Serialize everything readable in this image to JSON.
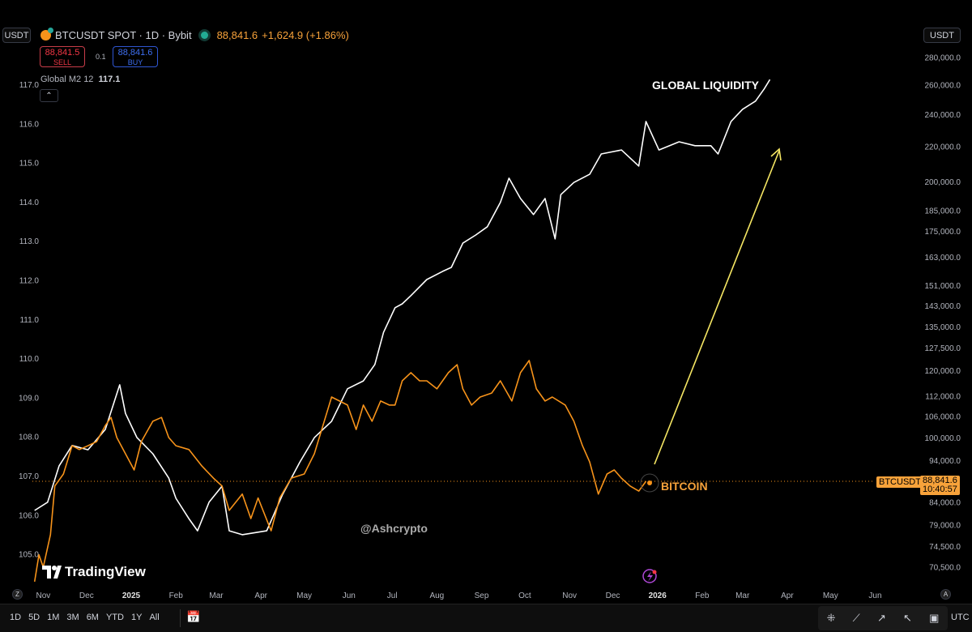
{
  "header": {
    "currency_left": "USDT",
    "currency_right": "USDT",
    "symbol": "BTCUSDT SPOT · 1D · Bybit",
    "price": "88,841.6",
    "change": "+1,624.9 (+1.86%)",
    "sell_price": "88,841.5",
    "sell_label": "SELL",
    "qty": "0.1",
    "buy_price": "88,841.6",
    "buy_label": "BUY",
    "indicator_name": "Global M2 12",
    "indicator_value": "117.1",
    "collapse_icon": "chevron-up-icon"
  },
  "price_tag": {
    "symbol": "BTCUSDT",
    "price": "88,841.6",
    "countdown": "10:40:57"
  },
  "annotations": {
    "liquidity": "GLOBAL LIQUIDITY",
    "bitcoin": "BITCOIN",
    "watermark": "@Ashcrypto",
    "logo": "TradingView"
  },
  "bottom_bar": {
    "ranges": [
      "1D",
      "5D",
      "1M",
      "3M",
      "6M",
      "YTD",
      "1Y",
      "All"
    ],
    "timezone": "UTC",
    "left_axis_btn": "Z",
    "right_axis_btn": "A"
  },
  "colors": {
    "bitcoin": "#f7931a",
    "liquidity": "#ffffff",
    "arrow": "#f5e663",
    "background": "#000000"
  },
  "chart_data": {
    "type": "line",
    "x_type": "date",
    "x_ticks": [
      {
        "date": "2024-11-01",
        "label": "Nov"
      },
      {
        "date": "2024-12-01",
        "label": "Dec"
      },
      {
        "date": "2025-01-01",
        "label": "2025"
      },
      {
        "date": "2025-02-01",
        "label": "Feb"
      },
      {
        "date": "2025-03-01",
        "label": "Mar"
      },
      {
        "date": "2025-04-01",
        "label": "Apr"
      },
      {
        "date": "2025-05-01",
        "label": "May"
      },
      {
        "date": "2025-06-01",
        "label": "Jun"
      },
      {
        "date": "2025-07-01",
        "label": "Jul"
      },
      {
        "date": "2025-08-01",
        "label": "Aug"
      },
      {
        "date": "2025-09-01",
        "label": "Sep"
      },
      {
        "date": "2025-10-01",
        "label": "Oct"
      },
      {
        "date": "2025-11-01",
        "label": "Nov"
      },
      {
        "date": "2025-12-01",
        "label": "Dec"
      },
      {
        "date": "2026-01-01",
        "label": "2026"
      },
      {
        "date": "2026-02-01",
        "label": "Feb"
      },
      {
        "date": "2026-03-01",
        "label": "Mar"
      },
      {
        "date": "2026-04-01",
        "label": "Apr"
      },
      {
        "date": "2026-05-01",
        "label": "May"
      },
      {
        "date": "2026-06-01",
        "label": "Jun"
      }
    ],
    "left_axis": {
      "scale": "linear",
      "ticks": [
        "105.0",
        "106.0",
        "107.0",
        "108.0",
        "109.0",
        "110.0",
        "111.0",
        "112.0",
        "113.0",
        "114.0",
        "115.0",
        "116.0",
        "117.0"
      ]
    },
    "right_axis": {
      "scale": "log",
      "ticks": [
        "70,500.0",
        "74,500.0",
        "79,000.0",
        "84,000.0",
        "94,000.0",
        "100,000.0",
        "106,000.0",
        "112,000.0",
        "120,000.0",
        "127,500.0",
        "135,000.0",
        "143,000.0",
        "151,000.0",
        "163,000.0",
        "175,000.0",
        "185,000.0",
        "200,000.0",
        "220,000.0",
        "240,000.0",
        "260,000.0",
        "280,000.0"
      ]
    },
    "current_price_line": 88841.6,
    "series": [
      {
        "axis": "left",
        "color": "#ffffff",
        "points": [
          [
            "2024-10-26",
            106.11
          ],
          [
            "2024-11-04",
            106.32
          ],
          [
            "2024-11-12",
            107.25
          ],
          [
            "2024-11-21",
            107.77
          ],
          [
            "2024-12-02",
            107.66
          ],
          [
            "2024-12-14",
            108.18
          ],
          [
            "2024-12-24",
            109.32
          ],
          [
            "2024-12-28",
            108.59
          ],
          [
            "2025-01-05",
            107.97
          ],
          [
            "2025-01-16",
            107.56
          ],
          [
            "2025-01-27",
            106.94
          ],
          [
            "2025-02-01",
            106.42
          ],
          [
            "2025-02-10",
            105.9
          ],
          [
            "2025-02-16",
            105.59
          ],
          [
            "2025-02-24",
            106.32
          ],
          [
            "2025-03-05",
            106.73
          ],
          [
            "2025-03-10",
            105.59
          ],
          [
            "2025-03-19",
            105.49
          ],
          [
            "2025-04-05",
            105.59
          ],
          [
            "2025-04-16",
            106.52
          ],
          [
            "2025-04-28",
            107.35
          ],
          [
            "2025-05-08",
            107.97
          ],
          [
            "2025-05-20",
            108.39
          ],
          [
            "2025-05-31",
            109.22
          ],
          [
            "2025-06-11",
            109.42
          ],
          [
            "2025-06-19",
            109.84
          ],
          [
            "2025-06-25",
            110.66
          ],
          [
            "2025-07-03",
            111.29
          ],
          [
            "2025-07-08",
            111.39
          ],
          [
            "2025-07-14",
            111.6
          ],
          [
            "2025-07-25",
            112.01
          ],
          [
            "2025-08-05",
            112.22
          ],
          [
            "2025-08-11",
            112.32
          ],
          [
            "2025-08-19",
            112.94
          ],
          [
            "2025-08-28",
            113.15
          ],
          [
            "2025-09-05",
            113.36
          ],
          [
            "2025-09-14",
            113.98
          ],
          [
            "2025-09-20",
            114.6
          ],
          [
            "2025-09-28",
            114.08
          ],
          [
            "2025-10-07",
            113.67
          ],
          [
            "2025-10-15",
            114.08
          ],
          [
            "2025-10-22",
            113.05
          ],
          [
            "2025-10-26",
            114.18
          ],
          [
            "2025-11-04",
            114.49
          ],
          [
            "2025-11-15",
            114.7
          ],
          [
            "2025-11-23",
            115.22
          ],
          [
            "2025-12-07",
            115.32
          ],
          [
            "2025-12-19",
            114.91
          ],
          [
            "2025-12-24",
            116.05
          ],
          [
            "2026-01-02",
            115.32
          ],
          [
            "2026-01-16",
            115.53
          ],
          [
            "2026-01-27",
            115.43
          ],
          [
            "2026-02-07",
            115.43
          ],
          [
            "2026-02-12",
            115.22
          ],
          [
            "2026-02-21",
            116.05
          ],
          [
            "2026-03-01",
            116.36
          ],
          [
            "2026-03-10",
            116.57
          ],
          [
            "2026-03-16",
            116.88
          ],
          [
            "2026-03-20",
            117.12
          ]
        ]
      },
      {
        "axis": "right",
        "color": "#f7931a",
        "points": [
          [
            "2024-10-26",
            67700
          ],
          [
            "2024-10-29",
            72800
          ],
          [
            "2024-11-01",
            70400
          ],
          [
            "2024-11-06",
            76900
          ],
          [
            "2024-11-09",
            87700
          ],
          [
            "2024-11-15",
            90600
          ],
          [
            "2024-11-21",
            97800
          ],
          [
            "2024-11-26",
            96800
          ],
          [
            "2024-12-02",
            97800
          ],
          [
            "2024-12-08",
            98900
          ],
          [
            "2024-12-14",
            103300
          ],
          [
            "2024-12-18",
            105600
          ],
          [
            "2024-12-22",
            100000
          ],
          [
            "2024-12-28",
            95700
          ],
          [
            "2025-01-03",
            91600
          ],
          [
            "2025-01-08",
            98900
          ],
          [
            "2025-01-16",
            104500
          ],
          [
            "2025-01-22",
            105600
          ],
          [
            "2025-01-27",
            100000
          ],
          [
            "2025-02-01",
            97800
          ],
          [
            "2025-02-10",
            96800
          ],
          [
            "2025-02-19",
            92600
          ],
          [
            "2025-02-27",
            89600
          ],
          [
            "2025-03-05",
            87700
          ],
          [
            "2025-03-10",
            82100
          ],
          [
            "2025-03-19",
            85800
          ],
          [
            "2025-03-25",
            80300
          ],
          [
            "2025-03-30",
            84900
          ],
          [
            "2025-04-08",
            77700
          ],
          [
            "2025-04-14",
            84900
          ],
          [
            "2025-04-22",
            89600
          ],
          [
            "2025-05-01",
            90600
          ],
          [
            "2025-05-08",
            95700
          ],
          [
            "2025-05-20",
            111600
          ],
          [
            "2025-05-31",
            109200
          ],
          [
            "2025-06-06",
            102200
          ],
          [
            "2025-06-11",
            109200
          ],
          [
            "2025-06-17",
            104500
          ],
          [
            "2025-06-23",
            110400
          ],
          [
            "2025-06-29",
            109200
          ],
          [
            "2025-07-03",
            109200
          ],
          [
            "2025-07-08",
            116600
          ],
          [
            "2025-07-14",
            119200
          ],
          [
            "2025-07-20",
            116600
          ],
          [
            "2025-07-25",
            116600
          ],
          [
            "2025-08-01",
            114100
          ],
          [
            "2025-08-09",
            119200
          ],
          [
            "2025-08-15",
            121800
          ],
          [
            "2025-08-19",
            114100
          ],
          [
            "2025-08-25",
            109200
          ],
          [
            "2025-08-31",
            111600
          ],
          [
            "2025-09-08",
            112800
          ],
          [
            "2025-09-14",
            116600
          ],
          [
            "2025-09-22",
            110400
          ],
          [
            "2025-09-28",
            119200
          ],
          [
            "2025-10-04",
            123200
          ],
          [
            "2025-10-09",
            114100
          ],
          [
            "2025-10-15",
            110400
          ],
          [
            "2025-10-20",
            111600
          ],
          [
            "2025-10-29",
            109200
          ],
          [
            "2025-11-04",
            104500
          ],
          [
            "2025-11-10",
            97800
          ],
          [
            "2025-11-15",
            93600
          ],
          [
            "2025-11-21",
            85800
          ],
          [
            "2025-11-27",
            90600
          ],
          [
            "2025-12-02",
            91600
          ],
          [
            "2025-12-07",
            89600
          ],
          [
            "2025-12-13",
            87700
          ],
          [
            "2025-12-19",
            86500
          ],
          [
            "2025-12-24",
            88841.6
          ]
        ]
      }
    ]
  }
}
